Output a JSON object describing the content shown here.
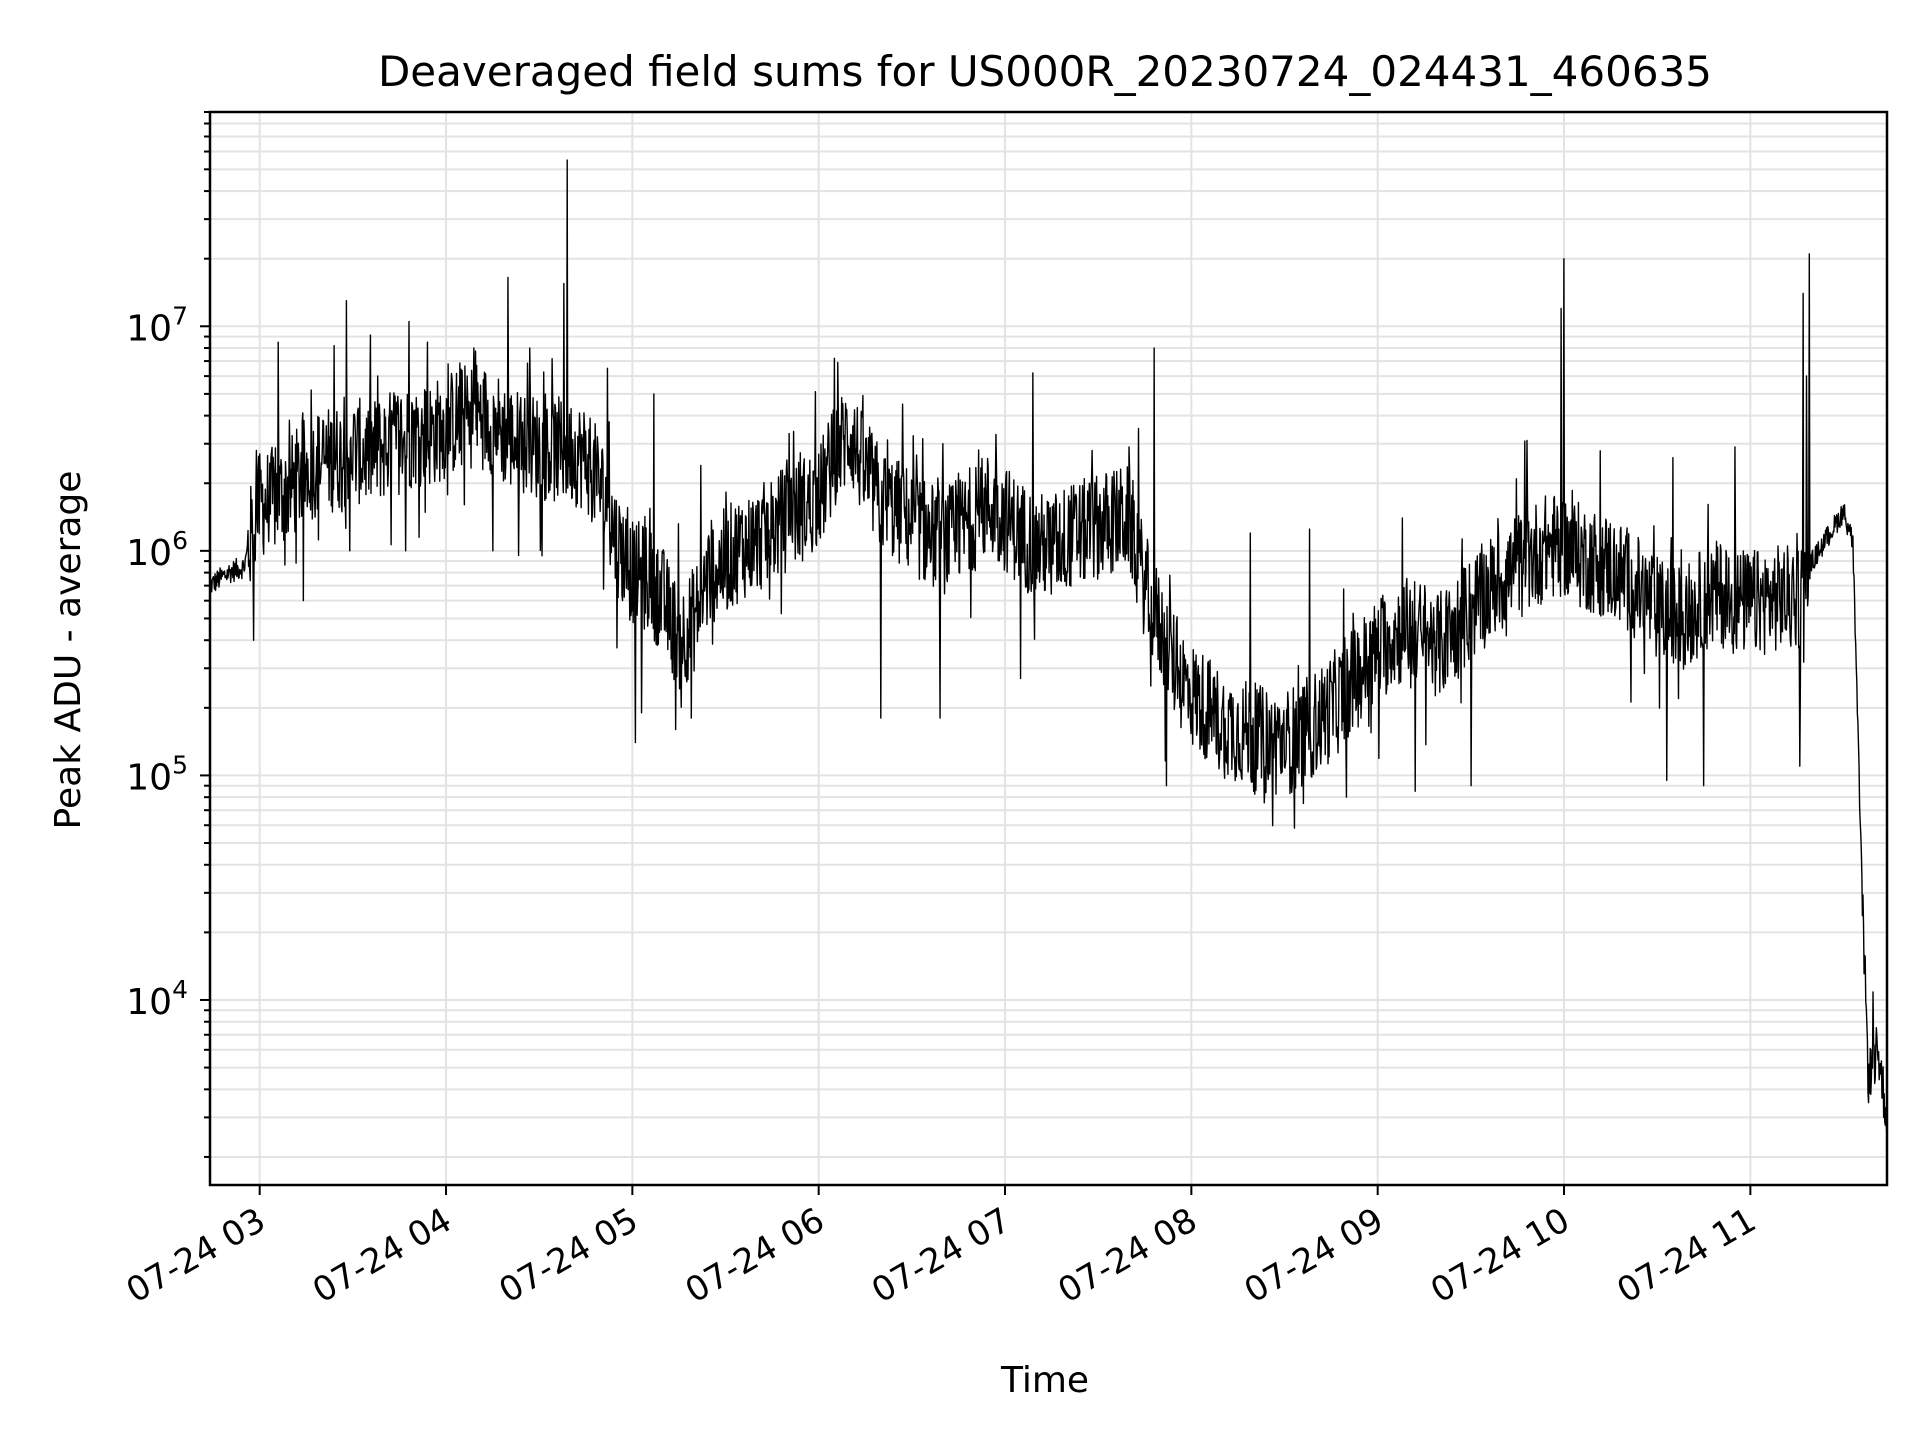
{
  "chart_data": {
    "type": "line",
    "title": "Deaveraged field sums for US000R_20230724_024431_460635",
    "xlabel": "Time",
    "ylabel": "Peak ADU - average",
    "yscale": "log",
    "grid": true,
    "legend": "none",
    "xlim": [
      "2023-07-24 02:44",
      "2023-07-24 11:44"
    ],
    "ylim": [
      1500,
      90000000
    ],
    "x_tick_labels": [
      "07-24 03",
      "07-24 04",
      "07-24 05",
      "07-24 06",
      "07-24 07",
      "07-24 08",
      "07-24 09",
      "07-24 10",
      "07-24 11"
    ],
    "x_ticks": [
      "2023-07-24 03:00",
      "2023-07-24 04:00",
      "2023-07-24 05:00",
      "2023-07-24 06:00",
      "2023-07-24 07:00",
      "2023-07-24 08:00",
      "2023-07-24 09:00",
      "2023-07-24 10:00",
      "2023-07-24 11:00"
    ],
    "y_ticks": [
      {
        "value": 10000,
        "base": "10",
        "exp": "4"
      },
      {
        "value": 100000,
        "base": "10",
        "exp": "5"
      },
      {
        "value": 1000000,
        "base": "10",
        "exp": "6"
      },
      {
        "value": 10000000,
        "base": "10",
        "exp": "7"
      }
    ],
    "series": [
      {
        "color": "#000000",
        "points": [
          [
            "2023-07-24 02:44",
            700000
          ],
          [
            "2023-07-24 02:50",
            800000
          ],
          [
            "2023-07-24 02:55",
            850000
          ],
          [
            "2023-07-24 02:58",
            1300000
          ],
          [
            "2023-07-24 03:00",
            1600000
          ],
          [
            "2023-07-24 03:05",
            1700000
          ],
          [
            "2023-07-24 03:10",
            1900000
          ],
          [
            "2023-07-24 03:15",
            2300000
          ],
          [
            "2023-07-24 03:20",
            2500000
          ],
          [
            "2023-07-24 03:25",
            2600000
          ],
          [
            "2023-07-24 03:30",
            2800000
          ],
          [
            "2023-07-24 03:35",
            2700000
          ],
          [
            "2023-07-24 03:40",
            2900000
          ],
          [
            "2023-07-24 03:45",
            3200000
          ],
          [
            "2023-07-24 03:50",
            3300000
          ],
          [
            "2023-07-24 03:55",
            3300000
          ],
          [
            "2023-07-24 04:00",
            3600000
          ],
          [
            "2023-07-24 04:05",
            3900000
          ],
          [
            "2023-07-24 04:10",
            4100000
          ],
          [
            "2023-07-24 04:15",
            3800000
          ],
          [
            "2023-07-24 04:20",
            3200000
          ],
          [
            "2023-07-24 04:25",
            3000000
          ],
          [
            "2023-07-24 04:30",
            2900000
          ],
          [
            "2023-07-24 04:35",
            2800000
          ],
          [
            "2023-07-24 04:40",
            2800000
          ],
          [
            "2023-07-24 04:45",
            2600000
          ],
          [
            "2023-07-24 04:50",
            1900000
          ],
          [
            "2023-07-24 04:55",
            1100000
          ],
          [
            "2023-07-24 05:00",
            800000
          ],
          [
            "2023-07-24 05:05",
            750000
          ],
          [
            "2023-07-24 05:10",
            600000
          ],
          [
            "2023-07-24 05:15",
            400000
          ],
          [
            "2023-07-24 05:20",
            500000
          ],
          [
            "2023-07-24 05:25",
            800000
          ],
          [
            "2023-07-24 05:30",
            900000
          ],
          [
            "2023-07-24 05:35",
            1050000
          ],
          [
            "2023-07-24 05:40",
            1100000
          ],
          [
            "2023-07-24 05:45",
            1250000
          ],
          [
            "2023-07-24 05:50",
            1400000
          ],
          [
            "2023-07-24 05:55",
            1550000
          ],
          [
            "2023-07-24 06:00",
            1700000
          ],
          [
            "2023-07-24 06:05",
            2600000
          ],
          [
            "2023-07-24 06:10",
            3400000
          ],
          [
            "2023-07-24 06:15",
            2200000
          ],
          [
            "2023-07-24 06:20",
            1700000
          ],
          [
            "2023-07-24 06:25",
            1500000
          ],
          [
            "2023-07-24 06:30",
            1350000
          ],
          [
            "2023-07-24 06:35",
            1200000
          ],
          [
            "2023-07-24 06:40",
            1100000
          ],
          [
            "2023-07-24 06:45",
            1200000
          ],
          [
            "2023-07-24 06:50",
            1450000
          ],
          [
            "2023-07-24 06:55",
            1600000
          ],
          [
            "2023-07-24 07:00",
            1400000
          ],
          [
            "2023-07-24 07:05",
            1200000
          ],
          [
            "2023-07-24 07:10",
            1050000
          ],
          [
            "2023-07-24 07:15",
            1050000
          ],
          [
            "2023-07-24 07:20",
            1150000
          ],
          [
            "2023-07-24 07:25",
            1200000
          ],
          [
            "2023-07-24 07:30",
            1300000
          ],
          [
            "2023-07-24 07:35",
            1350000
          ],
          [
            "2023-07-24 07:40",
            1400000
          ],
          [
            "2023-07-24 07:45",
            700000
          ],
          [
            "2023-07-24 07:50",
            450000
          ],
          [
            "2023-07-24 07:55",
            300000
          ],
          [
            "2023-07-24 08:00",
            230000
          ],
          [
            "2023-07-24 08:05",
            200000
          ],
          [
            "2023-07-24 08:10",
            170000
          ],
          [
            "2023-07-24 08:15",
            160000
          ],
          [
            "2023-07-24 08:20",
            150000
          ],
          [
            "2023-07-24 08:25",
            140000
          ],
          [
            "2023-07-24 08:30",
            140000
          ],
          [
            "2023-07-24 08:35",
            150000
          ],
          [
            "2023-07-24 08:40",
            170000
          ],
          [
            "2023-07-24 08:45",
            200000
          ],
          [
            "2023-07-24 08:50",
            240000
          ],
          [
            "2023-07-24 08:55",
            300000
          ],
          [
            "2023-07-24 09:00",
            360000
          ],
          [
            "2023-07-24 09:05",
            420000
          ],
          [
            "2023-07-24 09:10",
            450000
          ],
          [
            "2023-07-24 09:15",
            420000
          ],
          [
            "2023-07-24 09:20",
            380000
          ],
          [
            "2023-07-24 09:25",
            450000
          ],
          [
            "2023-07-24 09:30",
            550000
          ],
          [
            "2023-07-24 09:35",
            650000
          ],
          [
            "2023-07-24 09:40",
            750000
          ],
          [
            "2023-07-24 09:45",
            850000
          ],
          [
            "2023-07-24 09:50",
            950000
          ],
          [
            "2023-07-24 09:55",
            1050000
          ],
          [
            "2023-07-24 10:00",
            1050000
          ],
          [
            "2023-07-24 10:05",
            950000
          ],
          [
            "2023-07-24 10:10",
            900000
          ],
          [
            "2023-07-24 10:15",
            850000
          ],
          [
            "2023-07-24 10:20",
            750000
          ],
          [
            "2023-07-24 10:25",
            650000
          ],
          [
            "2023-07-24 10:30",
            550000
          ],
          [
            "2023-07-24 10:35",
            500000
          ],
          [
            "2023-07-24 10:40",
            520000
          ],
          [
            "2023-07-24 10:45",
            600000
          ],
          [
            "2023-07-24 10:50",
            650000
          ],
          [
            "2023-07-24 10:55",
            600000
          ],
          [
            "2023-07-24 11:00",
            580000
          ],
          [
            "2023-07-24 11:05",
            600000
          ],
          [
            "2023-07-24 11:10",
            620000
          ],
          [
            "2023-07-24 11:15",
            600000
          ],
          [
            "2023-07-24 11:20",
            900000
          ],
          [
            "2023-07-24 11:30",
            1500000
          ],
          [
            "2023-07-24 11:33",
            1100000
          ],
          [
            "2023-07-24 11:36",
            30000
          ],
          [
            "2023-07-24 11:38",
            4500
          ],
          [
            "2023-07-24 11:41",
            6000
          ],
          [
            "2023-07-24 11:44",
            3000
          ]
        ],
        "spikes": [
          [
            "2023-07-24 02:59",
            2800000
          ],
          [
            "2023-07-24 03:06",
            8500000
          ],
          [
            "2023-07-24 03:24",
            8200000
          ],
          [
            "2023-07-24 03:28",
            13000000
          ],
          [
            "2023-07-24 03:38",
            6000000
          ],
          [
            "2023-07-24 03:48",
            10500000
          ],
          [
            "2023-07-24 03:54",
            8500000
          ],
          [
            "2023-07-24 04:09",
            8000000
          ],
          [
            "2023-07-24 04:20",
            16500000
          ],
          [
            "2023-07-24 04:27",
            8000000
          ],
          [
            "2023-07-24 04:38",
            15500000
          ],
          [
            "2023-07-24 04:39",
            55000000
          ],
          [
            "2023-07-24 04:52",
            6500000
          ],
          [
            "2023-07-24 05:07",
            5000000
          ],
          [
            "2023-07-24 05:22",
            2400000
          ],
          [
            "2023-07-24 05:52",
            3400000
          ],
          [
            "2023-07-24 06:05",
            7200000
          ],
          [
            "2023-07-24 06:27",
            4500000
          ],
          [
            "2023-07-24 06:40",
            3000000
          ],
          [
            "2023-07-24 06:57",
            3300000
          ],
          [
            "2023-07-24 07:09",
            6200000
          ],
          [
            "2023-07-24 07:28",
            2800000
          ],
          [
            "2023-07-24 07:40",
            2900000
          ],
          [
            "2023-07-24 07:48",
            8000000
          ],
          [
            "2023-07-24 08:19",
            1200000
          ],
          [
            "2023-07-24 08:38",
            1250000
          ],
          [
            "2023-07-24 09:08",
            1400000
          ],
          [
            "2023-07-24 09:48",
            3100000
          ],
          [
            "2023-07-24 09:59",
            12000000
          ],
          [
            "2023-07-24 10:00",
            20000000
          ],
          [
            "2023-07-24 10:35",
            2600000
          ],
          [
            "2023-07-24 10:55",
            2900000
          ],
          [
            "2023-07-24 11:17",
            14000000
          ],
          [
            "2023-07-24 11:18",
            6000000
          ],
          [
            "2023-07-24 11:19",
            21000000
          ]
        ],
        "dips": [
          [
            "2023-07-24 02:58",
            400000
          ],
          [
            "2023-07-24 03:14",
            600000
          ],
          [
            "2023-07-24 03:29",
            1000000
          ],
          [
            "2023-07-24 03:47",
            1000000
          ],
          [
            "2023-07-24 04:15",
            1000000
          ],
          [
            "2023-07-24 04:55",
            370000
          ],
          [
            "2023-07-24 05:01",
            140000
          ],
          [
            "2023-07-24 05:03",
            190000
          ],
          [
            "2023-07-24 05:14",
            160000
          ],
          [
            "2023-07-24 05:19",
            180000
          ],
          [
            "2023-07-24 06:20",
            180000
          ],
          [
            "2023-07-24 06:39",
            180000
          ],
          [
            "2023-07-24 07:05",
            270000
          ],
          [
            "2023-07-24 07:47",
            250000
          ],
          [
            "2023-07-24 07:52",
            90000
          ],
          [
            "2023-07-24 08:20",
            85000
          ],
          [
            "2023-07-24 08:36",
            75000
          ],
          [
            "2023-07-24 08:50",
            80000
          ],
          [
            "2023-07-24 09:12",
            85000
          ],
          [
            "2023-07-24 09:30",
            90000
          ],
          [
            "2023-07-24 10:33",
            95000
          ],
          [
            "2023-07-24 10:45",
            90000
          ],
          [
            "2023-07-24 11:16",
            110000
          ]
        ]
      }
    ]
  }
}
